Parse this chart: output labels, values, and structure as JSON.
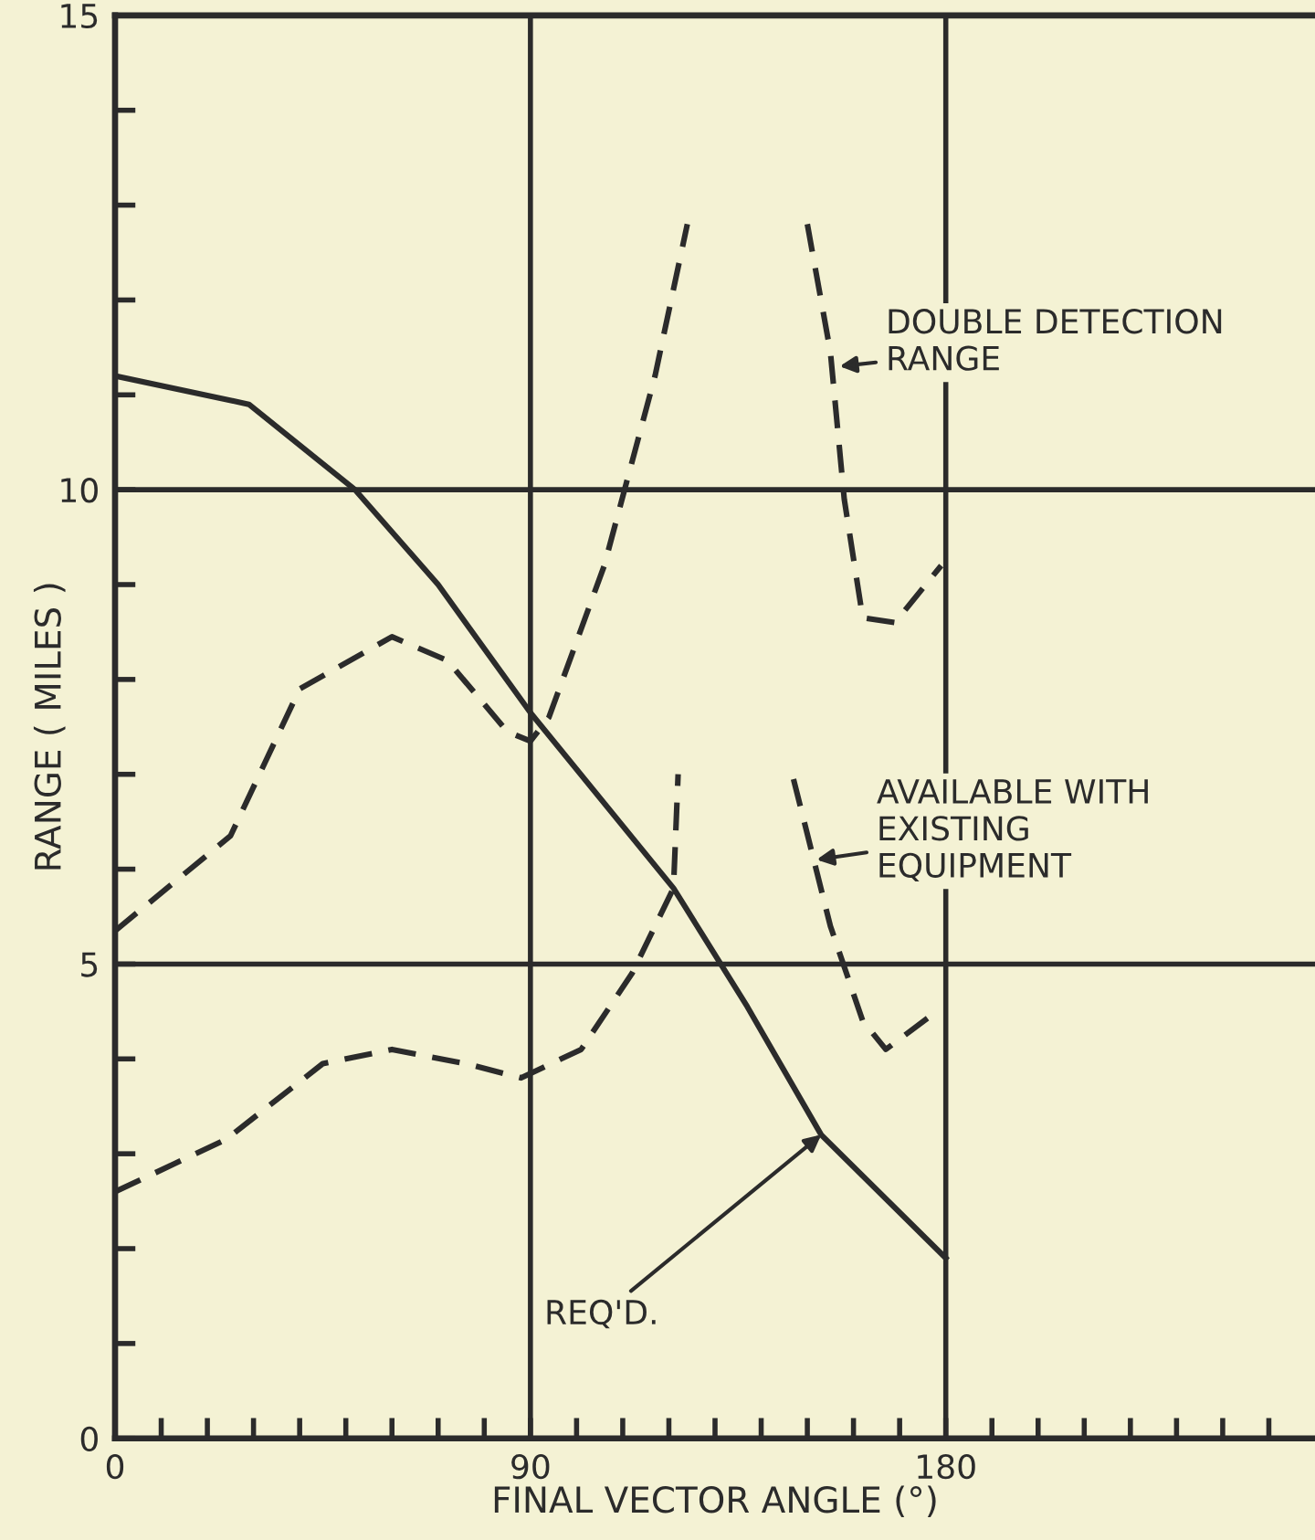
{
  "chart_data": {
    "type": "line",
    "xlabel": "FINAL VECTOR ANGLE (°)",
    "ylabel": "RANGE ( MILES )",
    "xlim": [
      0,
      260
    ],
    "ylim": [
      0,
      15
    ],
    "xticks": [
      0,
      {
        "value": 10,
        "label": null
      },
      {
        "value": 20,
        "label": null
      },
      {
        "value": 30,
        "label": null
      },
      {
        "value": 40,
        "label": null
      },
      {
        "value": 50,
        "label": null
      },
      {
        "value": 60,
        "label": null
      },
      {
        "value": 70,
        "label": null
      },
      {
        "value": 80,
        "label": null
      },
      90,
      {
        "value": 100,
        "label": null
      },
      {
        "value": 110,
        "label": null
      },
      {
        "value": 120,
        "label": null
      },
      {
        "value": 130,
        "label": null
      },
      {
        "value": 140,
        "label": null
      },
      {
        "value": 150,
        "label": null
      },
      {
        "value": 160,
        "label": null
      },
      {
        "value": 170,
        "label": null
      },
      180,
      {
        "value": 190,
        "label": null
      },
      {
        "value": 200,
        "label": null
      },
      {
        "value": 210,
        "label": null
      },
      {
        "value": 220,
        "label": null
      },
      {
        "value": 230,
        "label": null
      },
      {
        "value": 240,
        "label": null
      },
      {
        "value": 250,
        "label": null
      }
    ],
    "yticks": [
      0,
      {
        "value": 1,
        "label": null
      },
      {
        "value": 2,
        "label": null
      },
      {
        "value": 3,
        "label": null
      },
      {
        "value": 4,
        "label": null
      },
      5,
      {
        "value": 6,
        "label": null
      },
      {
        "value": 7,
        "label": null
      },
      {
        "value": 8,
        "label": null
      },
      {
        "value": 9,
        "label": null
      },
      10,
      {
        "value": 11,
        "label": null
      },
      {
        "value": 12,
        "label": null
      },
      {
        "value": 13,
        "label": null
      },
      {
        "value": 14,
        "label": null
      },
      15
    ],
    "grid": false,
    "legend": false,
    "marker": "none",
    "series": [
      {
        "color": "#2b2b2b",
        "line_style": "solid",
        "x": [
          0,
          29,
          52,
          70,
          90,
          121,
          137,
          153,
          180
        ],
        "values": [
          11.2,
          10.9,
          10.0,
          9.0,
          7.65,
          5.8,
          4.55,
          3.2,
          1.9
        ]
      },
      {
        "color": "#2b2b2b",
        "line_style": "dashed",
        "x": [
          0,
          24,
          45,
          60,
          76,
          88,
          101,
          112,
          121,
          122
        ],
        "values": [
          2.6,
          3.15,
          3.95,
          4.1,
          3.95,
          3.8,
          4.1,
          4.9,
          5.8,
          7.0
        ]
      },
      {
        "color": "#2b2b2b",
        "line_style": "dashed",
        "x": [
          147,
          155,
          162,
          167,
          178
        ],
        "values": [
          6.95,
          5.4,
          4.4,
          4.1,
          4.5
        ]
      },
      {
        "color": "#2b2b2b",
        "line_style": "dashed",
        "x": [
          0,
          25,
          40,
          60,
          72,
          85,
          90,
          94,
          106,
          117,
          124
        ],
        "values": [
          5.35,
          6.35,
          7.9,
          8.45,
          8.2,
          7.45,
          7.35,
          7.6,
          9.2,
          11.2,
          12.8
        ]
      },
      {
        "color": "#2b2b2b",
        "line_style": "dashed",
        "x": [
          150,
          155,
          158,
          162,
          169,
          179
        ],
        "values": [
          12.8,
          11.45,
          9.9,
          8.65,
          8.6,
          9.2
        ]
      }
    ],
    "ref_lines": [
      {
        "axis": "x",
        "value": 90,
        "color": "#2b2b2b"
      },
      {
        "axis": "x",
        "value": 180,
        "color": "#2b2b2b"
      },
      {
        "axis": "y",
        "value": 5,
        "color": "#2b2b2b"
      },
      {
        "axis": "y",
        "value": 10,
        "color": "#2b2b2b"
      }
    ],
    "annotations": [
      {
        "text": "DOUBLE DETECTION\nRANGE",
        "x": 157,
        "y": 11.3
      },
      {
        "text": "AVAILABLE WITH\nEXISTING\nEQUIPMENT",
        "x": 152,
        "y": 6.1
      },
      {
        "text": "REQ'D.",
        "x": 153,
        "y": 3.2
      }
    ]
  }
}
